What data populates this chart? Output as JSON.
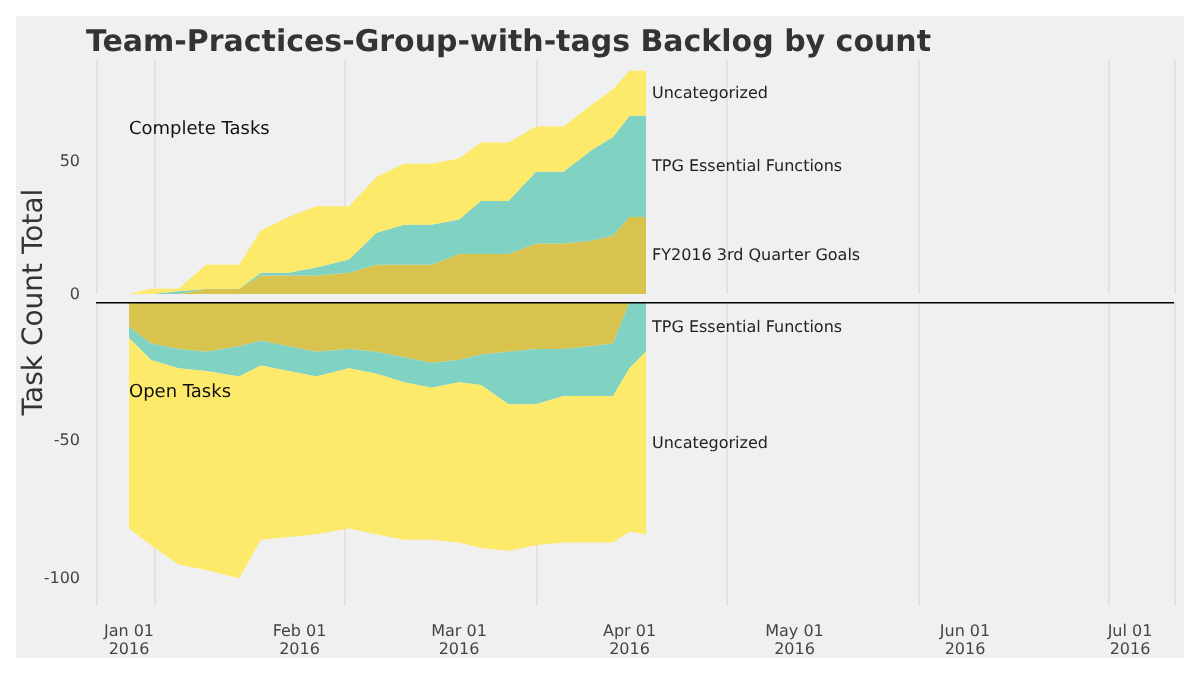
{
  "chart_data": [
    {
      "type": "area",
      "title": "Team-Practices-Group-with-tags Backlog by count",
      "ylabel": "Task Count Total",
      "x": [
        "2016-01-01",
        "2016-01-05",
        "2016-01-10",
        "2016-01-15",
        "2016-01-21",
        "2016-01-25",
        "2016-01-30",
        "2016-02-04",
        "2016-02-10",
        "2016-02-15",
        "2016-02-20",
        "2016-02-25",
        "2016-03-01",
        "2016-03-05",
        "2016-03-10",
        "2016-03-15",
        "2016-03-20",
        "2016-03-25",
        "2016-03-29",
        "2016-04-01",
        "2016-04-04"
      ],
      "stacked": true,
      "series": [
        {
          "name": "FY2016 3rd Quarter Goals",
          "color": "#d9c34f",
          "values": [
            0,
            0,
            0,
            2,
            2,
            7,
            7,
            7,
            8,
            11,
            11,
            11,
            15,
            15,
            15,
            19,
            19,
            20,
            22,
            29,
            29
          ]
        },
        {
          "name": "TPG Essential Functions",
          "color": "#80d2c2",
          "values": [
            0,
            0,
            1,
            0,
            0,
            1,
            1,
            3,
            5,
            12,
            15,
            15,
            13,
            20,
            20,
            27,
            27,
            34,
            37,
            38,
            38
          ]
        },
        {
          "name": "Uncategorized",
          "color": "#fde96a",
          "values": [
            0,
            2,
            1,
            9,
            9,
            16,
            21,
            23,
            20,
            21,
            23,
            23,
            23,
            22,
            22,
            17,
            17,
            17,
            18,
            17,
            17
          ]
        }
      ],
      "annotations": [
        "Complete Tasks"
      ],
      "xlim": [
        "2015-12-26",
        "2016-07-09"
      ],
      "ylim": [
        0,
        88
      ],
      "yticks": [
        0,
        50
      ],
      "tick_labels": "y",
      "grid": "x",
      "legend": false
    },
    {
      "type": "area",
      "x": [
        "2016-01-01",
        "2016-01-05",
        "2016-01-10",
        "2016-01-15",
        "2016-01-21",
        "2016-01-25",
        "2016-01-30",
        "2016-02-04",
        "2016-02-10",
        "2016-02-15",
        "2016-02-20",
        "2016-02-25",
        "2016-03-01",
        "2016-03-05",
        "2016-03-10",
        "2016-03-15",
        "2016-03-20",
        "2016-03-25",
        "2016-03-29",
        "2016-04-01",
        "2016-04-04"
      ],
      "stacked": true,
      "series": [
        {
          "color": "#d9c34f",
          "values": [
            -9,
            -15,
            -17,
            -18,
            -16,
            -14,
            -16,
            -18,
            -17,
            -18,
            -20,
            -22,
            -21,
            -19,
            -18,
            -17,
            -17,
            -16,
            -15,
            0,
            0
          ]
        },
        {
          "name": "TPG Essential Functions",
          "color": "#80d2c2",
          "values": [
            -4,
            -6,
            -7,
            -7,
            -11,
            -9,
            -9,
            -9,
            -7,
            -8,
            -9,
            -9,
            -8,
            -11,
            -19,
            -20,
            -17,
            -18,
            -19,
            -24,
            -18
          ]
        },
        {
          "name": "Uncategorized",
          "color": "#fde96a",
          "values": [
            -69,
            -67,
            -71,
            -72,
            -73,
            -63,
            -60,
            -57,
            -58,
            -58,
            -57,
            -55,
            -58,
            -59,
            -53,
            -51,
            -53,
            -53,
            -53,
            -59,
            -66
          ]
        }
      ],
      "annotations": [
        "Open Tasks"
      ],
      "ref_lines": [
        {
          "axis": "y",
          "value": 0,
          "color": "#000000"
        }
      ],
      "xlim": [
        "2015-12-26",
        "2016-07-09"
      ],
      "xticks": [
        {
          "value": "2016-01-01",
          "label": "Jan 01\n2016"
        },
        {
          "value": "2016-02-01",
          "label": "Feb 01\n2016"
        },
        {
          "value": "2016-03-01",
          "label": "Mar 01\n2016"
        },
        {
          "value": "2016-04-01",
          "label": "Apr 01\n2016"
        },
        {
          "value": "2016-05-01",
          "label": "May 01\n2016"
        },
        {
          "value": "2016-06-01",
          "label": "Jun 01\n2016"
        },
        {
          "value": "2016-07-01",
          "label": "Jul 01\n2016"
        }
      ],
      "ylim": [
        -110,
        0
      ],
      "yticks": [
        -100,
        -50
      ],
      "grid": "x",
      "legend": false
    }
  ]
}
